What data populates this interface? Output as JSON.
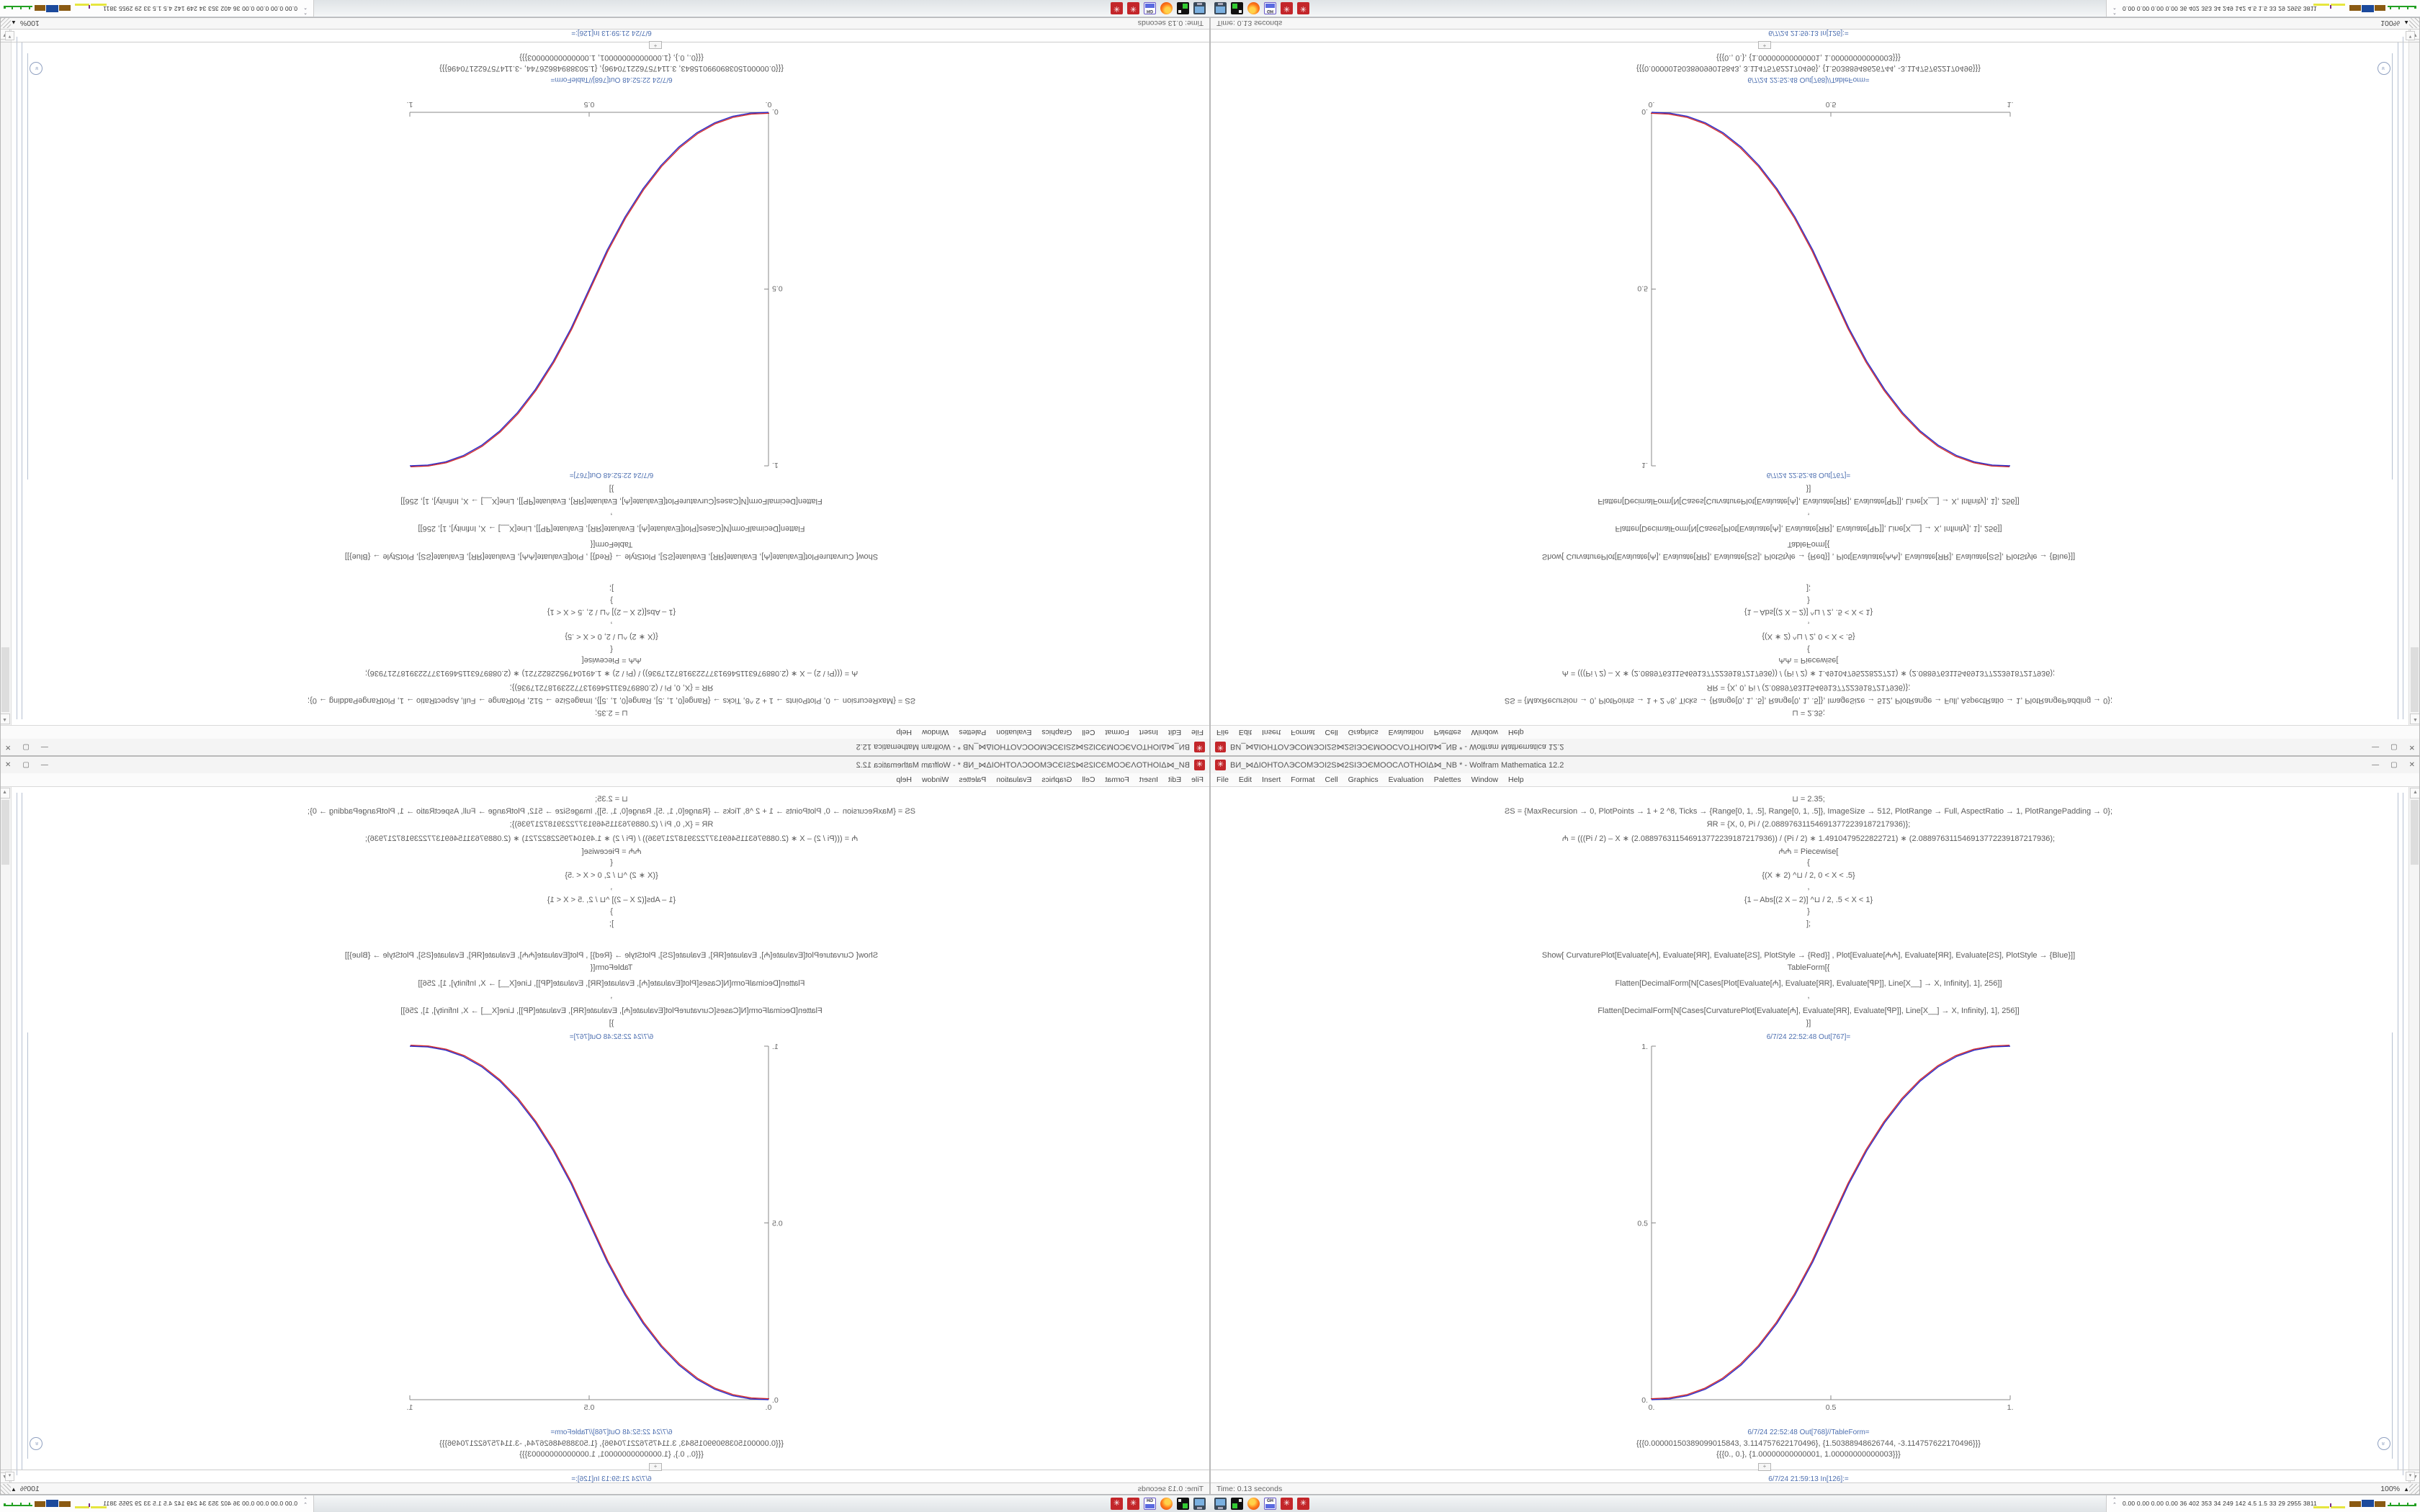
{
  "window": {
    "title": "ВИ_⋈ΔIOHTOΛЭCOMЭϽI2S⋈2SIЭϽЄMOOCΛOTHOIΔ⋈_NB * - Wolfram Mathematica 12.2",
    "app_icon": "✳",
    "buttons": {
      "minimize": "—",
      "maximize": "▢",
      "close": "✕"
    },
    "menu": [
      "File",
      "Edit",
      "Insert",
      "Format",
      "Cell",
      "Graphics",
      "Evaluation",
      "Palettes",
      "Window",
      "Help"
    ]
  },
  "notebook": {
    "lines": [
      {
        "y": 52,
        "cls": "code",
        "t": "⊔ = 2.35;"
      },
      {
        "y": 70,
        "cls": "code",
        "t": "ƧS = {MaxRecursion → 0, PlotPoints → 1 + 2 ^8, Ticks → {Range[0, 1, .5], Range[0, 1, .5]}, ImageSize → 512, PlotRange → Full, AspectRatio → 1, PlotRangePadding → 0};"
      },
      {
        "y": 88,
        "cls": "code",
        "t": "ЯR = {X, 0, Pi / (2.088976311546913772239187217936)};"
      },
      {
        "y": 106,
        "cls": "code",
        "t": "₼ = (((Pi / 2) – X ∗ (2.088976311546913772239187217936)) / (Pi / 2) ∗ 1.4910479522822721) ∗ (2.088976311546913772239187217936);"
      },
      {
        "y": 124,
        "cls": "code",
        "t": "₼₼ = Piecewise["
      },
      {
        "y": 141,
        "cls": "code",
        "t": "{"
      },
      {
        "y": 158,
        "cls": "code",
        "t": "{(X ∗ 2) ^⊔ / 2, 0 < X < .5}"
      },
      {
        "y": 175,
        "cls": "code",
        "t": ","
      },
      {
        "y": 192,
        "cls": "code",
        "t": "{1 – Abs[(2 X – 2)] ^⊔ / 2, .5 < X < 1}"
      },
      {
        "y": 209,
        "cls": "code",
        "t": "}"
      },
      {
        "y": 226,
        "cls": "code",
        "t": "];"
      },
      {
        "y": 268,
        "cls": "code",
        "t": "Show[  CurvaturePlot[Evaluate[₼], Evaluate[ЯR], Evaluate[ƧS], PlotStyle → {Red}]  ,   Plot[Evaluate[₼₼], Evaluate[ЯR], Evaluate[ƧS], PlotStyle → {Blue}]]"
      },
      {
        "y": 287,
        "cls": "code",
        "t": "TableForm[{"
      },
      {
        "y": 307,
        "cls": "code",
        "t": "Flatten[DecimalForm[N[Cases[Plot[Evaluate[₼], Evaluate[ЯR], Evaluate[ꟼP]], Line[X__] → X, Infinity], 1], 256]]"
      },
      {
        "y": 326,
        "cls": "code",
        "t": ","
      },
      {
        "y": 345,
        "cls": "code",
        "t": "Flatten[DecimalForm[N[Cases[CurvaturePlot[Evaluate[₼], Evaluate[ЯR], Evaluate[ꟼP]], Line[X__] → X, Infinity], 1], 256]]"
      },
      {
        "y": 364,
        "cls": "code",
        "t": "}]"
      },
      {
        "y": 384,
        "cls": "label",
        "t": "6/7/24 22:52:48 Out[767]="
      },
      {
        "y": 933,
        "cls": "label",
        "t": "6/7/24 22:52:48 Out[768]//TableForm="
      },
      {
        "y": 948,
        "cls": "code",
        "t": "{{{0.00000150389099015843, 3.114757622170496}, {1.50388948626744, -3.114757622170496}}}"
      },
      {
        "y": 963,
        "cls": "code",
        "t": "{{{0., 0.}, {1.00000000000001, 1.00000000000003}}}"
      },
      {
        "y": 998,
        "cls": "label",
        "t": "6/7/24 21:59:13 In[126]:="
      }
    ],
    "insertion_plus": "+",
    "expand_icon": "»"
  },
  "chart_data": {
    "type": "line",
    "title": "",
    "xlabel": "",
    "ylabel": "",
    "xlim": [
      0,
      1
    ],
    "ylim": [
      0,
      1
    ],
    "xticks": [
      "0.",
      "0.5",
      "1."
    ],
    "yticks": [
      "0.",
      "0.5",
      "1."
    ],
    "grid": false,
    "legend_position": "none",
    "x": [
      0,
      0.05,
      0.1,
      0.15,
      0.2,
      0.25,
      0.3,
      0.35,
      0.4,
      0.45,
      0.5,
      0.55,
      0.6,
      0.65,
      0.7,
      0.75,
      0.8,
      0.85,
      0.9,
      0.95,
      1
    ],
    "series": [
      {
        "name": "CurvaturePlot (Red)",
        "color": "#d42a2a",
        "values": [
          0,
          0.0022,
          0.0114,
          0.0296,
          0.058,
          0.0981,
          0.1505,
          0.2163,
          0.2959,
          0.3903,
          0.5,
          0.6097,
          0.7041,
          0.7837,
          0.8495,
          0.9019,
          0.942,
          0.9704,
          0.9886,
          0.9978,
          1
        ]
      },
      {
        "name": "Plot (Blue)",
        "color": "#2b2bc8",
        "values": [
          0,
          0.0022,
          0.0114,
          0.0296,
          0.058,
          0.0981,
          0.1505,
          0.2163,
          0.2959,
          0.3903,
          0.5,
          0.6097,
          0.7041,
          0.7837,
          0.8495,
          0.9019,
          0.942,
          0.9704,
          0.9886,
          0.9978,
          1
        ]
      }
    ]
  },
  "statusbar": {
    "time": "Time: 0.13 seconds",
    "zoom": "100%",
    "zoom_up": "▲"
  },
  "taskbar": {
    "icons": [
      "pc-icon",
      "terminal-icon",
      "firefox-icon",
      "save-icon",
      "mathematica-window-icon-1",
      "mathematica-window-icon-2"
    ],
    "tray": {
      "chevron": "⌃⌃",
      "values": [
        "0.00",
        "0.00",
        "0.00",
        "0.00",
        "36",
        "402",
        "353",
        "34",
        "249",
        "142",
        "4.5",
        "1.5",
        "33",
        "29",
        "2955",
        "3811"
      ],
      "spark_colors": {
        "yellow": "#e6e63e",
        "purple": "#7a2a8a",
        "brown": "#8a5a12",
        "blue": "#1c4a9c",
        "green": "#22a022"
      }
    }
  }
}
